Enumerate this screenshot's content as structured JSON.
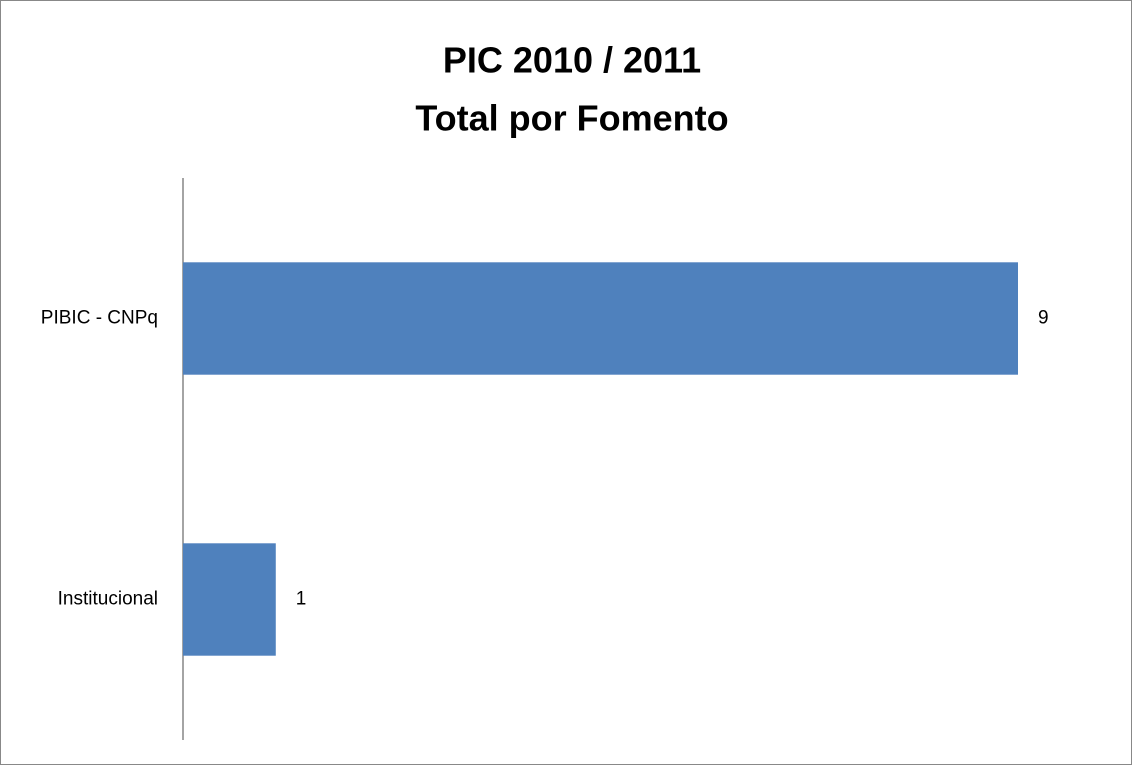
{
  "chart_data": {
    "type": "bar",
    "orientation": "horizontal",
    "title": "PIC 2010 / 2011",
    "subtitle": "Total por Fomento",
    "categories": [
      "PIBIC - CNPq",
      "Institucional"
    ],
    "values": [
      9,
      1
    ],
    "color": "#4f81bd"
  }
}
